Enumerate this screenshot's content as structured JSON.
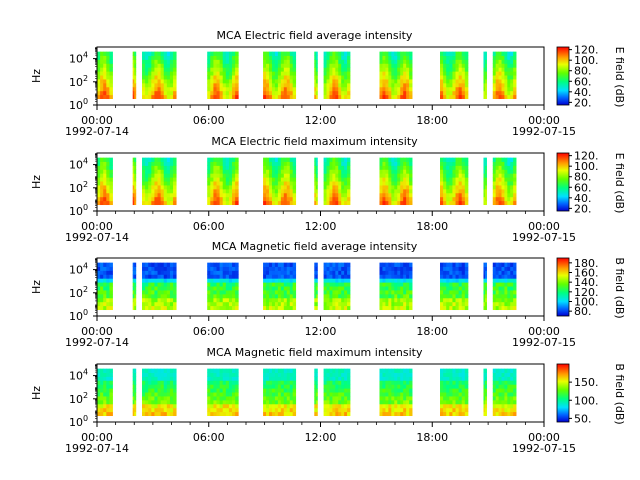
{
  "chart_data": [
    {
      "type": "heatmap",
      "title": "MCA  Electric field average intensity",
      "ylabel": "Hz",
      "ylim": [
        1,
        100000
      ],
      "y_scale": "log",
      "y_ticks": [
        "10^0",
        "10^2",
        "10^4"
      ],
      "x_ticks": [
        "00:00",
        "06:00",
        "12:00",
        "18:00",
        "00:00"
      ],
      "x_dates": [
        "1992-07-14",
        "1992-07-15"
      ],
      "xlim": [
        "1992-07-14 00:00",
        "1992-07-15 00:00"
      ],
      "colorbar": {
        "label": "E field (dB)",
        "range": [
          15,
          125
        ],
        "ticks": [
          "20.",
          "40.",
          "60.",
          "80.",
          "100.",
          "120."
        ]
      },
      "data_intervals": [
        [
          "00:00",
          "00:50"
        ],
        [
          "01:55",
          "02:05"
        ],
        [
          "02:25",
          "04:15"
        ],
        [
          "05:55",
          "07:35"
        ],
        [
          "08:55",
          "10:40"
        ],
        [
          "11:40",
          "11:50"
        ],
        [
          "12:10",
          "13:35"
        ],
        [
          "15:10",
          "16:55"
        ],
        [
          "18:25",
          "19:55"
        ],
        [
          "20:45",
          "20:55"
        ],
        [
          "21:15",
          "22:30"
        ]
      ]
    },
    {
      "type": "heatmap",
      "title": "MCA  Electric field maximum intensity",
      "ylabel": "Hz",
      "ylim": [
        1,
        100000
      ],
      "y_scale": "log",
      "y_ticks": [
        "10^0",
        "10^2",
        "10^4"
      ],
      "x_ticks": [
        "00:00",
        "06:00",
        "12:00",
        "18:00",
        "00:00"
      ],
      "x_dates": [
        "1992-07-14",
        "1992-07-15"
      ],
      "xlim": [
        "1992-07-14 00:00",
        "1992-07-15 00:00"
      ],
      "colorbar": {
        "label": "E field (dB)",
        "range": [
          15,
          125
        ],
        "ticks": [
          "20.",
          "40.",
          "60.",
          "80.",
          "100.",
          "120."
        ]
      },
      "data_intervals": [
        [
          "00:00",
          "00:50"
        ],
        [
          "01:55",
          "02:05"
        ],
        [
          "02:25",
          "04:15"
        ],
        [
          "05:55",
          "07:35"
        ],
        [
          "08:55",
          "10:40"
        ],
        [
          "11:40",
          "11:50"
        ],
        [
          "12:10",
          "13:35"
        ],
        [
          "15:10",
          "16:55"
        ],
        [
          "18:25",
          "19:55"
        ],
        [
          "20:45",
          "20:55"
        ],
        [
          "21:15",
          "22:30"
        ]
      ]
    },
    {
      "type": "heatmap",
      "title": "MCA  Magnetic field average intensity",
      "ylabel": "Hz",
      "ylim": [
        1,
        100000
      ],
      "y_scale": "log",
      "y_ticks": [
        "10^0",
        "10^2",
        "10^4"
      ],
      "x_ticks": [
        "00:00",
        "06:00",
        "12:00",
        "18:00",
        "00:00"
      ],
      "x_dates": [
        "1992-07-14",
        "1992-07-15"
      ],
      "xlim": [
        "1992-07-14 00:00",
        "1992-07-15 00:00"
      ],
      "colorbar": {
        "label": "B field (dB)",
        "range": [
          70,
          190
        ],
        "ticks": [
          "80.",
          "100.",
          "120.",
          "140.",
          "160.",
          "180."
        ]
      },
      "data_intervals": [
        [
          "00:00",
          "00:50"
        ],
        [
          "01:55",
          "02:05"
        ],
        [
          "02:25",
          "04:15"
        ],
        [
          "05:55",
          "07:35"
        ],
        [
          "08:55",
          "10:40"
        ],
        [
          "11:40",
          "11:50"
        ],
        [
          "12:10",
          "13:35"
        ],
        [
          "15:10",
          "16:55"
        ],
        [
          "18:25",
          "19:55"
        ],
        [
          "20:45",
          "20:55"
        ],
        [
          "21:15",
          "22:30"
        ]
      ]
    },
    {
      "type": "heatmap",
      "title": "MCA  Magnetic field maximum intensity",
      "ylabel": "Hz",
      "ylim": [
        1,
        100000
      ],
      "y_scale": "log",
      "y_ticks": [
        "10^0",
        "10^2",
        "10^4"
      ],
      "x_ticks": [
        "00:00",
        "06:00",
        "12:00",
        "18:00",
        "00:00"
      ],
      "x_dates": [
        "1992-07-14",
        "1992-07-15"
      ],
      "xlim": [
        "1992-07-14 00:00",
        "1992-07-15 00:00"
      ],
      "colorbar": {
        "label": "B field (dB)",
        "range": [
          40,
          200
        ],
        "ticks": [
          "50.",
          "100.",
          "150."
        ]
      },
      "data_intervals": [
        [
          "00:00",
          "00:50"
        ],
        [
          "01:55",
          "02:05"
        ],
        [
          "02:25",
          "04:15"
        ],
        [
          "05:55",
          "07:35"
        ],
        [
          "08:55",
          "10:40"
        ],
        [
          "11:40",
          "11:50"
        ],
        [
          "12:10",
          "13:35"
        ],
        [
          "15:10",
          "16:55"
        ],
        [
          "18:25",
          "19:55"
        ],
        [
          "20:45",
          "20:55"
        ],
        [
          "21:15",
          "22:30"
        ]
      ]
    }
  ]
}
